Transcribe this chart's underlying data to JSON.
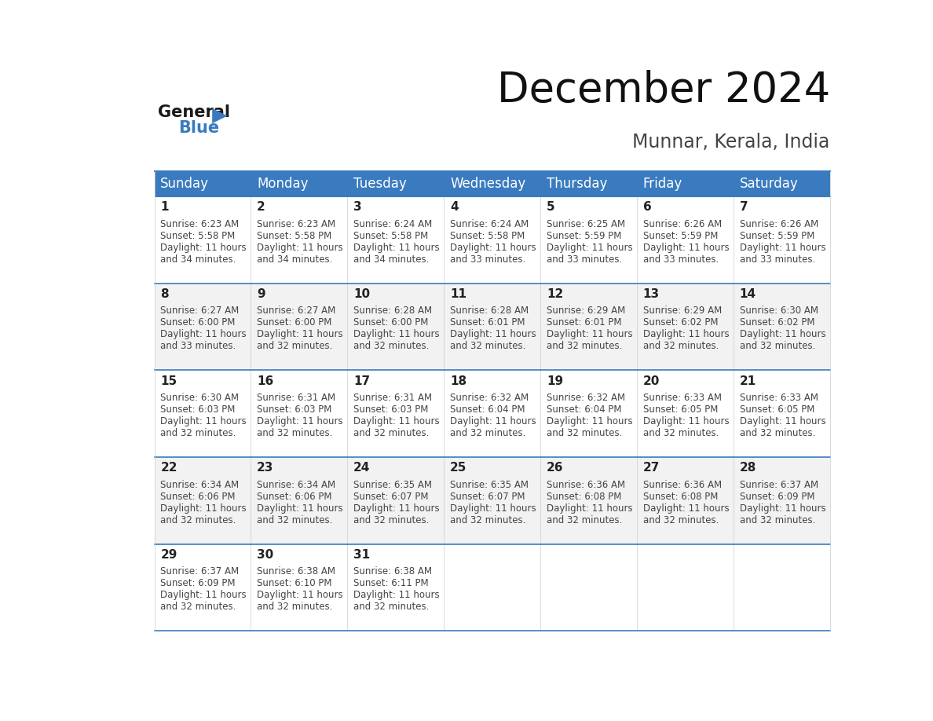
{
  "title": "December 2024",
  "subtitle": "Munnar, Kerala, India",
  "header_color": "#3a7bbf",
  "header_text_color": "#ffffff",
  "day_names": [
    "Sunday",
    "Monday",
    "Tuesday",
    "Wednesday",
    "Thursday",
    "Friday",
    "Saturday"
  ],
  "background_color": "#ffffff",
  "cell_bg_color": "#ffffff",
  "alt_cell_bg_color": "#f2f2f2",
  "border_color": "#3a7bbf",
  "text_color": "#444444",
  "dark_text_color": "#222222",
  "calendar_data": [
    [
      {
        "day": 1,
        "sunrise": "6:23 AM",
        "sunset": "5:58 PM",
        "daylight": "11 hours and 34 minutes."
      },
      {
        "day": 2,
        "sunrise": "6:23 AM",
        "sunset": "5:58 PM",
        "daylight": "11 hours and 34 minutes."
      },
      {
        "day": 3,
        "sunrise": "6:24 AM",
        "sunset": "5:58 PM",
        "daylight": "11 hours and 34 minutes."
      },
      {
        "day": 4,
        "sunrise": "6:24 AM",
        "sunset": "5:58 PM",
        "daylight": "11 hours and 33 minutes."
      },
      {
        "day": 5,
        "sunrise": "6:25 AM",
        "sunset": "5:59 PM",
        "daylight": "11 hours and 33 minutes."
      },
      {
        "day": 6,
        "sunrise": "6:26 AM",
        "sunset": "5:59 PM",
        "daylight": "11 hours and 33 minutes."
      },
      {
        "day": 7,
        "sunrise": "6:26 AM",
        "sunset": "5:59 PM",
        "daylight": "11 hours and 33 minutes."
      }
    ],
    [
      {
        "day": 8,
        "sunrise": "6:27 AM",
        "sunset": "6:00 PM",
        "daylight": "11 hours and 33 minutes."
      },
      {
        "day": 9,
        "sunrise": "6:27 AM",
        "sunset": "6:00 PM",
        "daylight": "11 hours and 32 minutes."
      },
      {
        "day": 10,
        "sunrise": "6:28 AM",
        "sunset": "6:00 PM",
        "daylight": "11 hours and 32 minutes."
      },
      {
        "day": 11,
        "sunrise": "6:28 AM",
        "sunset": "6:01 PM",
        "daylight": "11 hours and 32 minutes."
      },
      {
        "day": 12,
        "sunrise": "6:29 AM",
        "sunset": "6:01 PM",
        "daylight": "11 hours and 32 minutes."
      },
      {
        "day": 13,
        "sunrise": "6:29 AM",
        "sunset": "6:02 PM",
        "daylight": "11 hours and 32 minutes."
      },
      {
        "day": 14,
        "sunrise": "6:30 AM",
        "sunset": "6:02 PM",
        "daylight": "11 hours and 32 minutes."
      }
    ],
    [
      {
        "day": 15,
        "sunrise": "6:30 AM",
        "sunset": "6:03 PM",
        "daylight": "11 hours and 32 minutes."
      },
      {
        "day": 16,
        "sunrise": "6:31 AM",
        "sunset": "6:03 PM",
        "daylight": "11 hours and 32 minutes."
      },
      {
        "day": 17,
        "sunrise": "6:31 AM",
        "sunset": "6:03 PM",
        "daylight": "11 hours and 32 minutes."
      },
      {
        "day": 18,
        "sunrise": "6:32 AM",
        "sunset": "6:04 PM",
        "daylight": "11 hours and 32 minutes."
      },
      {
        "day": 19,
        "sunrise": "6:32 AM",
        "sunset": "6:04 PM",
        "daylight": "11 hours and 32 minutes."
      },
      {
        "day": 20,
        "sunrise": "6:33 AM",
        "sunset": "6:05 PM",
        "daylight": "11 hours and 32 minutes."
      },
      {
        "day": 21,
        "sunrise": "6:33 AM",
        "sunset": "6:05 PM",
        "daylight": "11 hours and 32 minutes."
      }
    ],
    [
      {
        "day": 22,
        "sunrise": "6:34 AM",
        "sunset": "6:06 PM",
        "daylight": "11 hours and 32 minutes."
      },
      {
        "day": 23,
        "sunrise": "6:34 AM",
        "sunset": "6:06 PM",
        "daylight": "11 hours and 32 minutes."
      },
      {
        "day": 24,
        "sunrise": "6:35 AM",
        "sunset": "6:07 PM",
        "daylight": "11 hours and 32 minutes."
      },
      {
        "day": 25,
        "sunrise": "6:35 AM",
        "sunset": "6:07 PM",
        "daylight": "11 hours and 32 minutes."
      },
      {
        "day": 26,
        "sunrise": "6:36 AM",
        "sunset": "6:08 PM",
        "daylight": "11 hours and 32 minutes."
      },
      {
        "day": 27,
        "sunrise": "6:36 AM",
        "sunset": "6:08 PM",
        "daylight": "11 hours and 32 minutes."
      },
      {
        "day": 28,
        "sunrise": "6:37 AM",
        "sunset": "6:09 PM",
        "daylight": "11 hours and 32 minutes."
      }
    ],
    [
      {
        "day": 29,
        "sunrise": "6:37 AM",
        "sunset": "6:09 PM",
        "daylight": "11 hours and 32 minutes."
      },
      {
        "day": 30,
        "sunrise": "6:38 AM",
        "sunset": "6:10 PM",
        "daylight": "11 hours and 32 minutes."
      },
      {
        "day": 31,
        "sunrise": "6:38 AM",
        "sunset": "6:11 PM",
        "daylight": "11 hours and 32 minutes."
      },
      null,
      null,
      null,
      null
    ]
  ],
  "logo_text_general": "General",
  "logo_text_blue": "Blue",
  "title_fontsize": 38,
  "subtitle_fontsize": 17,
  "day_name_fontsize": 12,
  "day_num_fontsize": 11,
  "cell_text_fontsize": 8.5,
  "logo_fontsize": 15
}
